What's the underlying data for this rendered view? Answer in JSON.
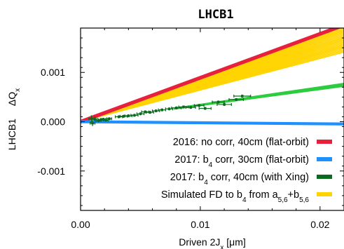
{
  "chart_data": {
    "type": "scatter",
    "title": "LHCB1",
    "xlabel": {
      "prefix": "Driven 2J",
      "sub": "x",
      "suffix": " [μm]"
    },
    "ylabel": {
      "main": "LHCB1",
      "delta": "ΔQ",
      "sub": "x"
    },
    "xlim": [
      0,
      0.022
    ],
    "ylim": [
      -0.0018,
      0.0019
    ],
    "x_ticks": [
      0.0,
      0.01,
      0.02
    ],
    "x_tick_labels": [
      "0.00",
      "0.01",
      "0.02"
    ],
    "y_ticks": [
      -0.001,
      0.0,
      0.001
    ],
    "y_tick_labels": [
      "-0.001",
      "0.000",
      "0.001"
    ],
    "grid": false,
    "legend_placement": "bottom-right",
    "legend": [
      {
        "parts": [
          [
            "2016: no corr, 40cm   (flat-orbit)",
            ""
          ]
        ],
        "color": "#e8203c"
      },
      {
        "parts": [
          [
            "2017: b",
            ""
          ],
          [
            "4",
            "sub"
          ],
          [
            " corr, 30cm   (flat-orbit)",
            ""
          ]
        ],
        "color": "#1e90ff"
      },
      {
        "parts": [
          [
            "2017: b",
            ""
          ],
          [
            "4",
            "sub"
          ],
          [
            " corr, 40cm (with Xing)",
            ""
          ]
        ],
        "color": "#0a6a1e"
      },
      {
        "parts": [
          [
            "Simulated FD to b",
            ""
          ],
          [
            "4",
            "sub"
          ],
          [
            " from a",
            ""
          ],
          [
            "5,6",
            "sub"
          ],
          [
            "+b",
            ""
          ],
          [
            "5,6",
            "sub"
          ]
        ],
        "color": "#ffd400"
      }
    ],
    "series": [
      {
        "slope": 0.0891,
        "x_start": 0.0,
        "x_end": 0.022,
        "color": "#e8203c",
        "band": 4e-05
      },
      {
        "slope": -0.0021,
        "x_start": 0.0,
        "x_end": 0.022,
        "color": "#1e90ff",
        "band": 3e-05
      },
      {
        "slope_range": [
          0.064,
          0.088
        ],
        "count": 26,
        "x_end": 0.022,
        "color": "#ffd400"
      },
      {
        "slope_range": [
          0.0325,
          0.0355
        ],
        "count": 12,
        "x_start": 0.0078,
        "x_end": 0.022,
        "color": "#2ecc40"
      },
      {
        "color": "#0a6a1e",
        "points": [
          {
            "x": 0.0009,
            "y": 6e-05,
            "yerr": 7e-05,
            "xerr": 0.0002
          },
          {
            "x": 0.001,
            "y": -3e-05,
            "yerr": 6e-05,
            "xerr": 0.0002
          },
          {
            "x": 0.0012,
            "y": 5e-05,
            "yerr": 6e-05,
            "xerr": 0.0002
          },
          {
            "x": 0.0015,
            "y": 2e-05,
            "yerr": 3e-05,
            "xerr": 0.0002
          },
          {
            "x": 0.0017,
            "y": 4e-05,
            "yerr": 3e-05,
            "xerr": 0.0002
          },
          {
            "x": 0.0019,
            "y": 5e-05,
            "yerr": 3e-05,
            "xerr": 0.0002
          },
          {
            "x": 0.0021,
            "y": 3e-05,
            "yerr": 3e-05,
            "xerr": 0.0002
          },
          {
            "x": 0.0024,
            "y": 6e-05,
            "yerr": 3e-05,
            "xerr": 0.0002
          },
          {
            "x": 0.0032,
            "y": 0.0001,
            "yerr": 3e-05,
            "xerr": 0.0003
          },
          {
            "x": 0.0036,
            "y": 0.00011,
            "yerr": 3e-05,
            "xerr": 0.0003
          },
          {
            "x": 0.004,
            "y": 0.00012,
            "yerr": 3e-05,
            "xerr": 0.0003
          },
          {
            "x": 0.0045,
            "y": 0.00013,
            "yerr": 3e-05,
            "xerr": 0.0003
          },
          {
            "x": 0.005,
            "y": 0.00016,
            "yerr": 3e-05,
            "xerr": 0.0003
          },
          {
            "x": 0.0054,
            "y": 0.0002,
            "yerr": 3e-05,
            "xerr": 0.0003
          },
          {
            "x": 0.0058,
            "y": 0.00019,
            "yerr": 3e-05,
            "xerr": 0.0003
          },
          {
            "x": 0.0063,
            "y": 0.00022,
            "yerr": 3e-05,
            "xerr": 0.0003
          },
          {
            "x": 0.0068,
            "y": 0.00024,
            "yerr": 3e-05,
            "xerr": 0.0003
          },
          {
            "x": 0.0074,
            "y": 0.00026,
            "yerr": 3e-05,
            "xerr": 0.0003
          },
          {
            "x": 0.008,
            "y": 0.00028,
            "yerr": 3e-05,
            "xerr": 0.0004
          },
          {
            "x": 0.0086,
            "y": 0.0003,
            "yerr": 3e-05,
            "xerr": 0.0004
          },
          {
            "x": 0.0092,
            "y": 0.00029,
            "yerr": 3e-05,
            "xerr": 0.0004
          },
          {
            "x": 0.0099,
            "y": 0.00033,
            "yerr": 3e-05,
            "xerr": 0.0004
          },
          {
            "x": 0.0104,
            "y": 0.00027,
            "yerr": 3e-05,
            "xerr": 0.0005
          },
          {
            "x": 0.0115,
            "y": 0.0004,
            "yerr": 3e-05,
            "xerr": 0.0005
          },
          {
            "x": 0.012,
            "y": 0.00035,
            "yerr": 3e-05,
            "xerr": 0.0006
          },
          {
            "x": 0.013,
            "y": 0.00045,
            "yerr": 3e-05,
            "xerr": 0.0006
          },
          {
            "x": 0.0135,
            "y": 0.00052,
            "yerr": 3e-05,
            "xerr": 0.0007
          }
        ]
      }
    ]
  }
}
